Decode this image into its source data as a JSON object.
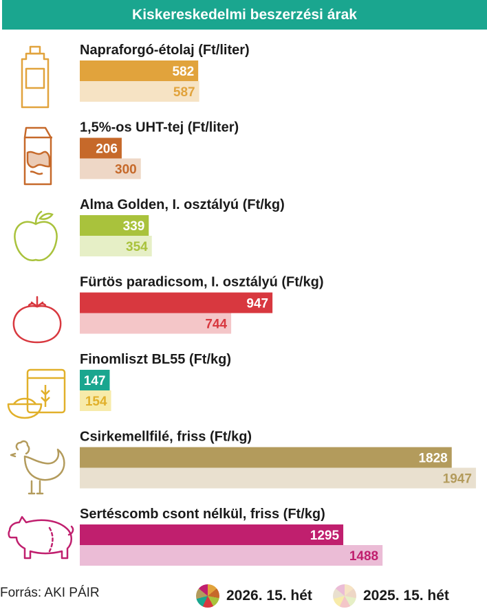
{
  "header": {
    "title": "Kiskereskedelmi beszerzési árak"
  },
  "source": "Forrás: AKI PÁIR",
  "legend": [
    {
      "label": "2026. 15. hét",
      "color": "#c9a24a"
    },
    {
      "label": "2025. 15. hét",
      "color": "#efe2c9"
    }
  ],
  "chart_data": {
    "type": "bar",
    "title": "Kiskereskedelmi beszerzési árak",
    "orientation": "horizontal",
    "categories": [
      "Napraforgó-étolaj (Ft/liter)",
      "1,5%-os UHT-tej (Ft/liter)",
      "Alma Golden, I. osztályú (Ft/kg)",
      "Fürtös paradicsom, I. osztályú (Ft/kg)",
      "Finomliszt BL55 (Ft/kg)",
      "Csirkemellfilé, friss (Ft/kg)",
      "Sertéscomb csont nélkül, friss (Ft/kg)"
    ],
    "series": [
      {
        "name": "2026. 15. hét",
        "values": [
          582,
          206,
          339,
          947,
          147,
          1828,
          1295
        ]
      },
      {
        "name": "2025. 15. hét",
        "values": [
          587,
          300,
          354,
          744,
          154,
          1947,
          1488
        ]
      }
    ],
    "colors": {
      "current": [
        "#e1a33c",
        "#c6692a",
        "#a9c23c",
        "#d8383f",
        "#1aa68f",
        "#b39b5c",
        "#c01f6e"
      ],
      "previous": [
        "#f6e3c4",
        "#eed7c6",
        "#e6efc6",
        "#f4c6c8",
        "#f7ebaa",
        "#e9e0cf",
        "#ebbcd6"
      ],
      "previous_text": [
        "#e1a33c",
        "#c6692a",
        "#a9c23c",
        "#d8383f",
        "#e1b02a",
        "#b39b5c",
        "#c01f6e"
      ]
    },
    "icons": [
      "oil-bottle-icon",
      "milk-carton-icon",
      "apple-icon",
      "tomato-icon",
      "flour-bag-icon",
      "chicken-icon",
      "pig-icon"
    ]
  }
}
